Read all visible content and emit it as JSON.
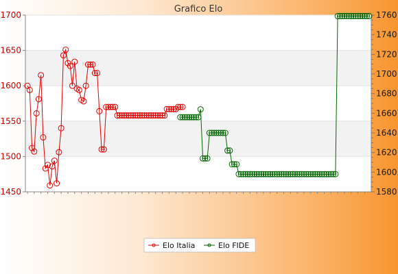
{
  "chart_data": {
    "type": "line",
    "title": "Grafico Elo",
    "legend_position": "bottom",
    "grid": true,
    "colors": {
      "elo_italia": "#e00000",
      "elo_fide": "#006600",
      "plot_band": "#f2f2f2",
      "plot_bg": "#ffffff"
    },
    "y_left": {
      "min": 1450,
      "max": 1700,
      "ticks": [
        1450,
        1500,
        1550,
        1600,
        1650,
        1700
      ]
    },
    "y_right": {
      "min": 1580,
      "max": 1760,
      "ticks": [
        1580,
        1600,
        1620,
        1640,
        1660,
        1680,
        1700,
        1720,
        1740,
        1760
      ]
    },
    "series": [
      {
        "name": "Elo Italia",
        "axis": "left",
        "x_index": [
          0,
          1,
          2,
          3,
          4,
          5,
          6,
          7,
          8,
          9,
          10,
          11,
          12,
          13,
          14,
          15,
          16,
          17,
          18,
          19,
          20,
          21,
          22,
          23,
          24,
          25,
          26,
          27,
          28,
          29,
          30,
          31,
          32,
          33,
          34,
          35,
          36,
          37,
          38,
          39,
          40,
          41,
          42,
          43,
          44,
          45,
          46,
          47,
          48,
          49,
          50,
          51,
          52,
          53,
          54,
          55,
          56,
          57,
          58,
          59,
          60,
          61,
          62,
          63,
          64,
          65,
          66,
          67,
          68,
          69
        ],
        "values": [
          1600,
          1594,
          1512,
          1507,
          1561,
          1581,
          1615,
          1527,
          1483,
          1488,
          1459,
          1486,
          1494,
          1462,
          1506,
          1540,
          1643,
          1651,
          1632,
          1628,
          1600,
          1634,
          1596,
          1594,
          1580,
          1578,
          1600,
          1630,
          1630,
          1630,
          1618,
          1618,
          1564,
          1510,
          1510,
          1570,
          1570,
          1570,
          1570,
          1570,
          1558,
          1558,
          1558,
          1558,
          1558,
          1558,
          1558,
          1558,
          1558,
          1558,
          1558,
          1558,
          1558,
          1558,
          1558,
          1558,
          1558,
          1558,
          1558,
          1558,
          1558,
          1558,
          1567,
          1567,
          1567,
          1567,
          1567,
          1570,
          1570,
          1570
        ]
      },
      {
        "name": "Elo FIDE",
        "axis": "right",
        "x_index": [
          68,
          69,
          70,
          71,
          72,
          73,
          74,
          75,
          76,
          77,
          78,
          79,
          80,
          81,
          82,
          83,
          84,
          85,
          86,
          87,
          88,
          89,
          90,
          91,
          92,
          93,
          94,
          95,
          96,
          97,
          98,
          99,
          100,
          101,
          102,
          103,
          104,
          105,
          106,
          107,
          108,
          109,
          110,
          111,
          112,
          113,
          114,
          115,
          116,
          117,
          118,
          119,
          120,
          121,
          122,
          123,
          124,
          125,
          126,
          127,
          128,
          129,
          130,
          131,
          132,
          133,
          134,
          135,
          136,
          137,
          138,
          139,
          140,
          141,
          142,
          143,
          144,
          145,
          146,
          147,
          148,
          149,
          150,
          151,
          152
        ],
        "values": [
          1656,
          1656,
          1656,
          1656,
          1656,
          1656,
          1656,
          1656,
          1656,
          1664,
          1614,
          1614,
          1614,
          1640,
          1640,
          1640,
          1640,
          1640,
          1640,
          1640,
          1640,
          1622,
          1622,
          1608,
          1608,
          1608,
          1598,
          1598,
          1598,
          1598,
          1598,
          1598,
          1598,
          1598,
          1598,
          1598,
          1598,
          1598,
          1598,
          1598,
          1598,
          1598,
          1598,
          1598,
          1598,
          1598,
          1598,
          1598,
          1598,
          1598,
          1598,
          1598,
          1598,
          1598,
          1598,
          1598,
          1598,
          1598,
          1598,
          1598,
          1598,
          1598,
          1598,
          1598,
          1598,
          1598,
          1598,
          1598,
          1598,
          1598,
          1759,
          1759,
          1759,
          1759,
          1759,
          1759,
          1759,
          1759,
          1759,
          1759,
          1759,
          1759,
          1759,
          1759,
          1759
        ]
      }
    ]
  }
}
